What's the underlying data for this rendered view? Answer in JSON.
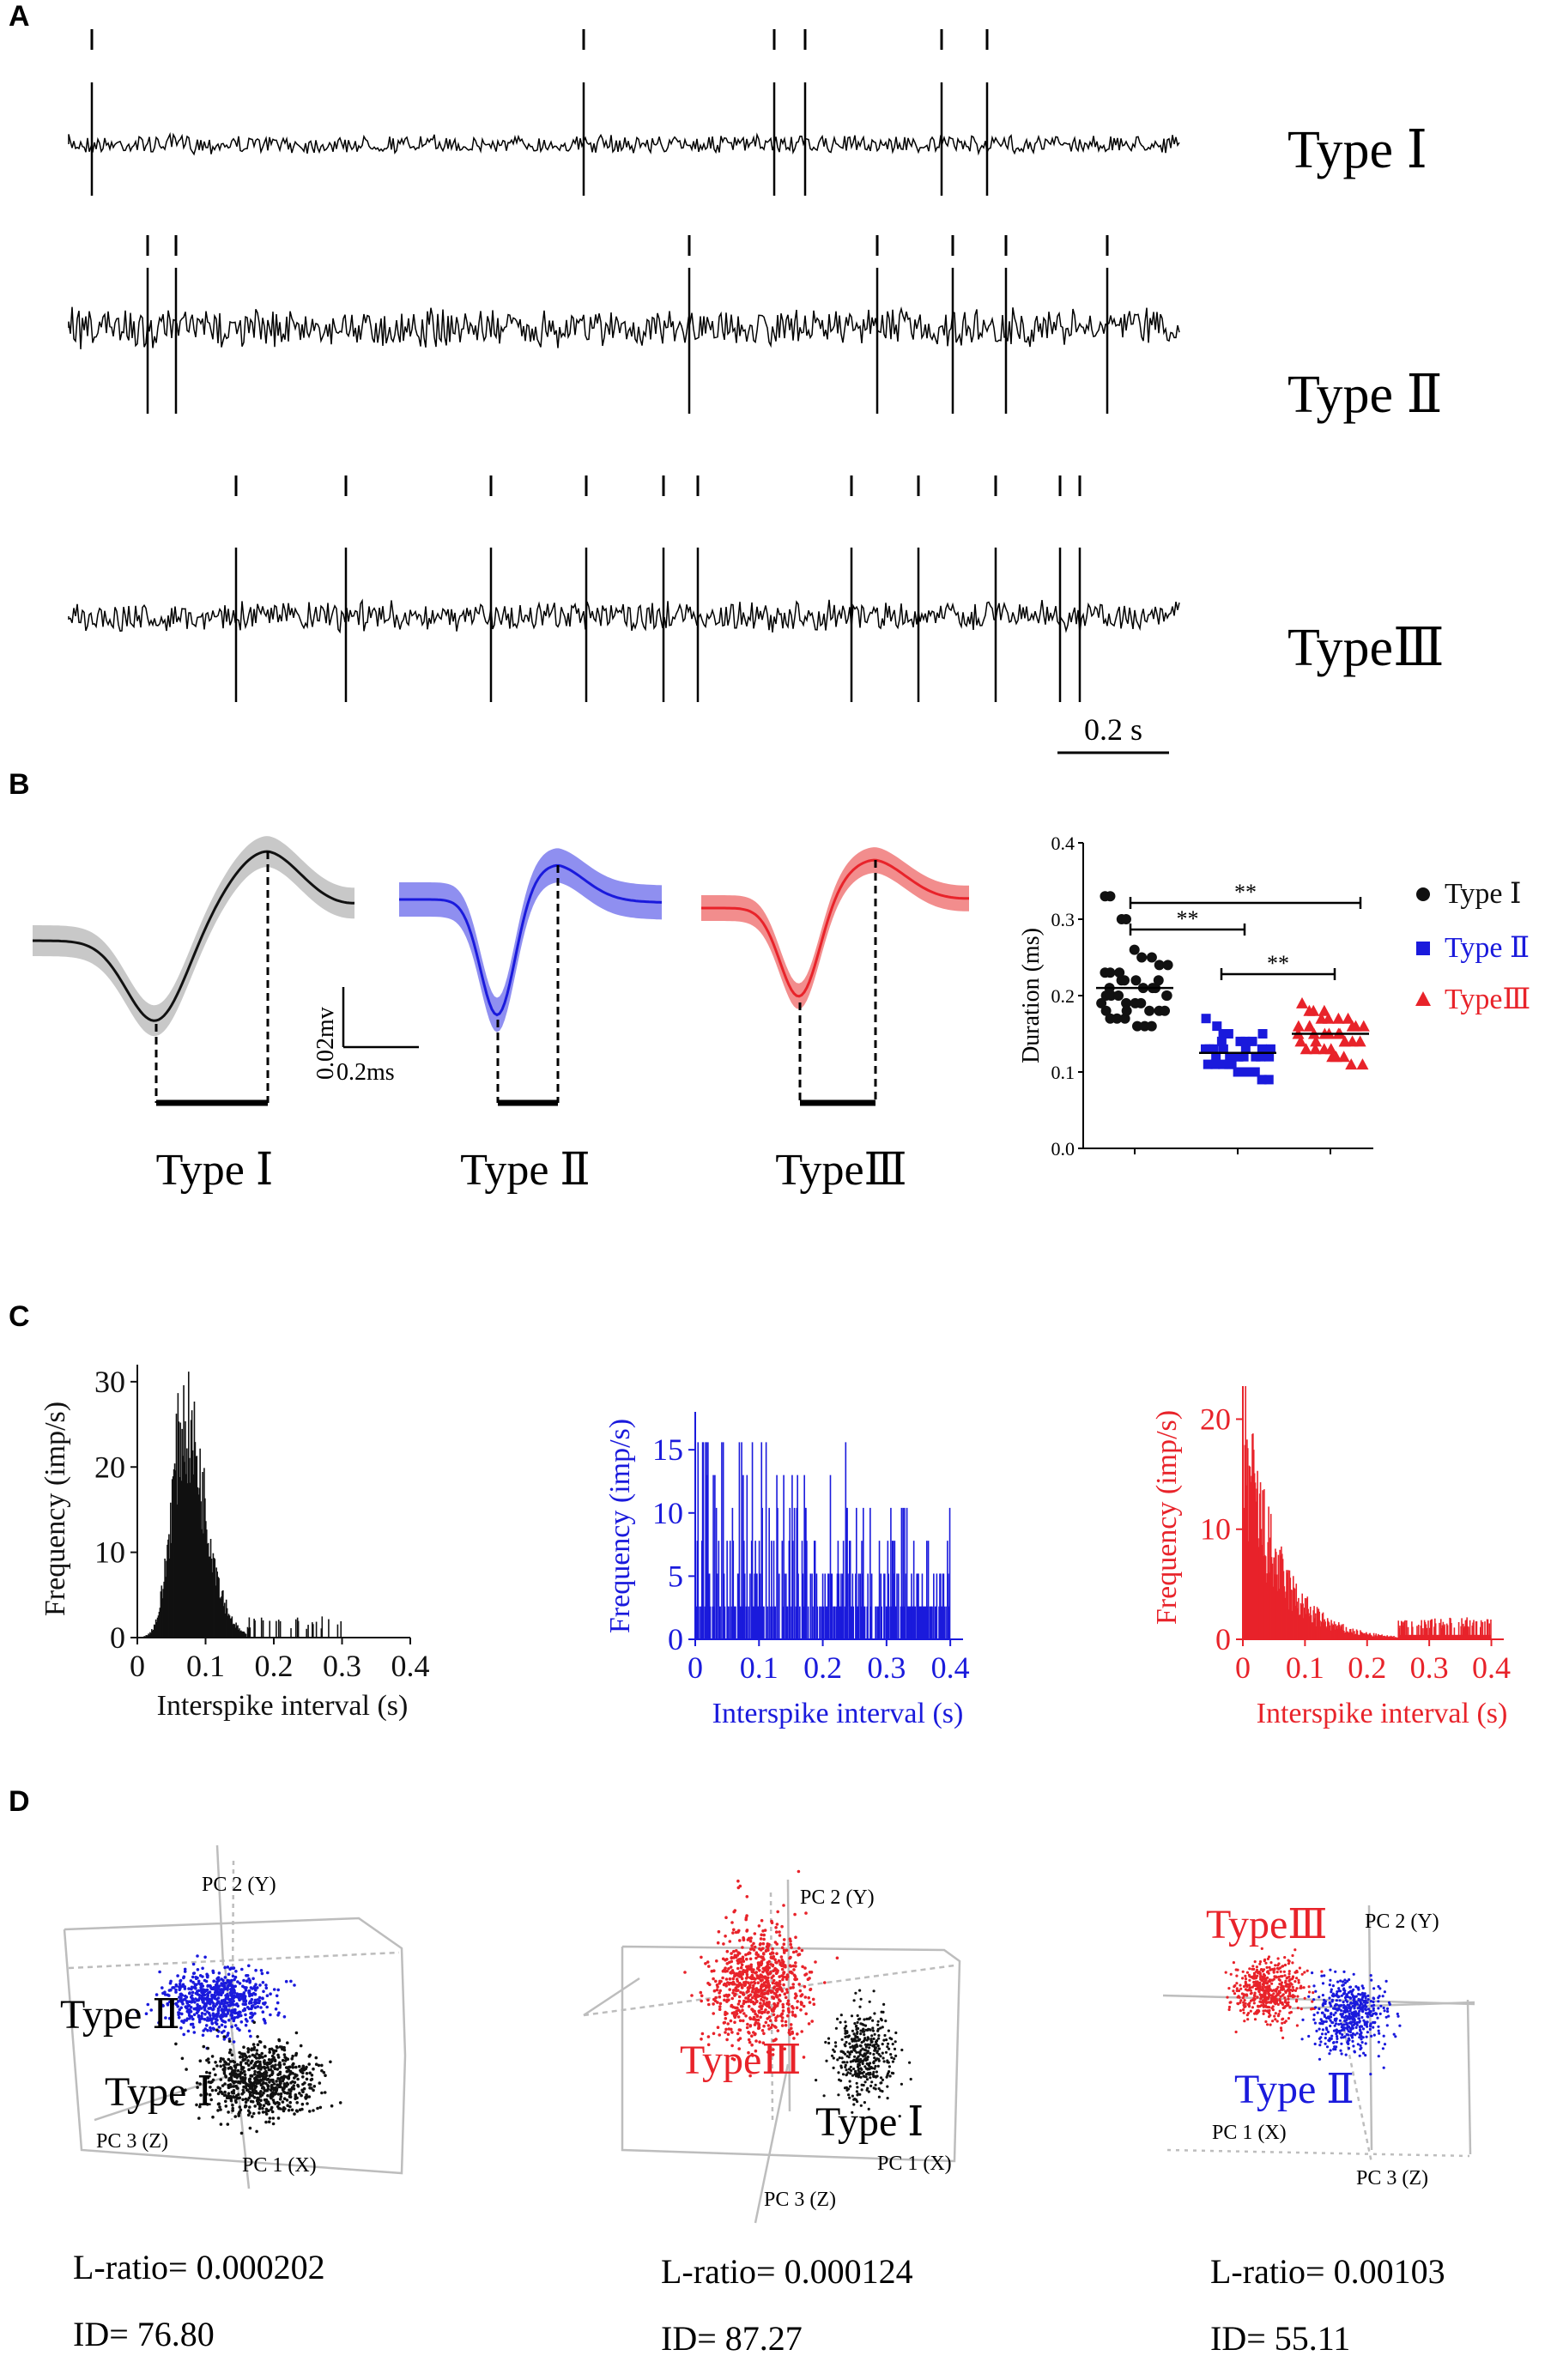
{
  "colors": {
    "type1": "#111111",
    "type2": "#1a1adc",
    "type3": "#e8232a",
    "band1": "#c8c8c8",
    "band2": "#8f8ff0",
    "band3": "#f28d8d"
  },
  "panels": {
    "a": "A",
    "b": "B",
    "c": "C",
    "d": "D"
  },
  "types": {
    "type1": "Type Ⅰ",
    "type2": "Type Ⅱ",
    "type3": "TypeⅢ"
  },
  "panel_a": {
    "scale_bar": "0.2 s",
    "scale_bar_seconds": 0.2
  },
  "panel_b": {
    "scale_v": "0.02mv",
    "scale_t": "0.2ms"
  },
  "chart_data": [
    {
      "id": "duration",
      "type": "scatter",
      "ylabel": "Duration (ms)",
      "ylim": [
        0,
        0.4
      ],
      "yticks": [
        "0.0",
        "0.1",
        "0.2",
        "0.3",
        "0.4"
      ],
      "significance": [
        "**",
        "**",
        "**"
      ],
      "legend": [
        "Type Ⅰ",
        "Type Ⅱ",
        "TypeⅢ"
      ],
      "series": [
        {
          "name": "Type Ⅰ",
          "mean": 0.21,
          "values": [
            0.33,
            0.33,
            0.3,
            0.3,
            0.26,
            0.25,
            0.25,
            0.24,
            0.24,
            0.23,
            0.23,
            0.22,
            0.22,
            0.22,
            0.21,
            0.21,
            0.21,
            0.2,
            0.2,
            0.2,
            0.2,
            0.19,
            0.19,
            0.19,
            0.18,
            0.18,
            0.18,
            0.18,
            0.17,
            0.17,
            0.17,
            0.16,
            0.16,
            0.16,
            0.22,
            0.2,
            0.19,
            0.21,
            0.23,
            0.18
          ]
        },
        {
          "name": "Type Ⅱ",
          "mean": 0.125,
          "values": [
            0.17,
            0.16,
            0.15,
            0.15,
            0.14,
            0.14,
            0.14,
            0.13,
            0.13,
            0.13,
            0.13,
            0.13,
            0.12,
            0.12,
            0.12,
            0.12,
            0.12,
            0.12,
            0.11,
            0.11,
            0.11,
            0.11,
            0.1,
            0.1,
            0.1,
            0.09,
            0.09,
            0.13,
            0.12,
            0.14,
            0.11,
            0.12,
            0.13,
            0.1,
            0.15
          ]
        },
        {
          "name": "TypeⅢ",
          "mean": 0.15,
          "values": [
            0.19,
            0.18,
            0.18,
            0.18,
            0.17,
            0.17,
            0.17,
            0.16,
            0.16,
            0.16,
            0.16,
            0.15,
            0.15,
            0.15,
            0.15,
            0.14,
            0.14,
            0.14,
            0.14,
            0.13,
            0.13,
            0.13,
            0.12,
            0.12,
            0.12,
            0.11,
            0.11,
            0.15,
            0.16,
            0.14,
            0.17,
            0.13,
            0.15,
            0.14,
            0.16
          ]
        }
      ]
    },
    {
      "id": "isi1",
      "type": "bar",
      "name": "Type Ⅰ",
      "xlabel": "Interspike interval (s)",
      "ylabel": "Frequency (imp/s)",
      "xlim": [
        0,
        0.4
      ],
      "ylim": [
        0,
        32
      ],
      "xticks": [
        "0",
        "0.1",
        "0.2",
        "0.3",
        "0.4"
      ],
      "yticks": [
        "0",
        "10",
        "20",
        "30"
      ],
      "data_xmax": 0.3,
      "peak": 0.068,
      "peak_value": 32
    },
    {
      "id": "isi2",
      "type": "bar",
      "name": "Type Ⅱ",
      "xlabel": "Interspike interval (s)",
      "ylabel": "Frequency (imp/s)",
      "xlim": [
        0,
        0.42
      ],
      "ylim": [
        0,
        18
      ],
      "xticks": [
        "0",
        "0.1",
        "0.2",
        "0.3",
        "0.4"
      ],
      "yticks": [
        "0",
        "5",
        "10",
        "15"
      ],
      "data_xmax": 0.4,
      "levels": [
        2.6,
        5.2,
        7.8,
        10.4,
        13.0,
        15.6
      ],
      "peak_value": 15.6
    },
    {
      "id": "isi3",
      "type": "bar",
      "name": "TypeⅢ",
      "xlabel": "Interspike interval (s)",
      "ylabel": "Frequency (imp/s)",
      "xlim": [
        0,
        0.42
      ],
      "ylim": [
        0,
        23
      ],
      "xticks": [
        "0",
        "0.1",
        "0.2",
        "0.3",
        "0.4"
      ],
      "yticks": [
        "0",
        "10",
        "20"
      ],
      "data_xmax": 0.4,
      "peak": 0.01,
      "peak_value": 22
    }
  ],
  "panel_d": {
    "axes": {
      "pc1": "PC 1 (X)",
      "pc2": "PC 2 (Y)",
      "pc3": "PC 3 (Z)"
    },
    "stats": [
      {
        "l_ratio": "L-ratio= 0.000202",
        "id": "ID= 76.80"
      },
      {
        "l_ratio": "L-ratio= 0.000124",
        "id": "ID= 87.27"
      },
      {
        "l_ratio": "L-ratio= 0.00103",
        "id": "ID= 55.11"
      }
    ]
  }
}
